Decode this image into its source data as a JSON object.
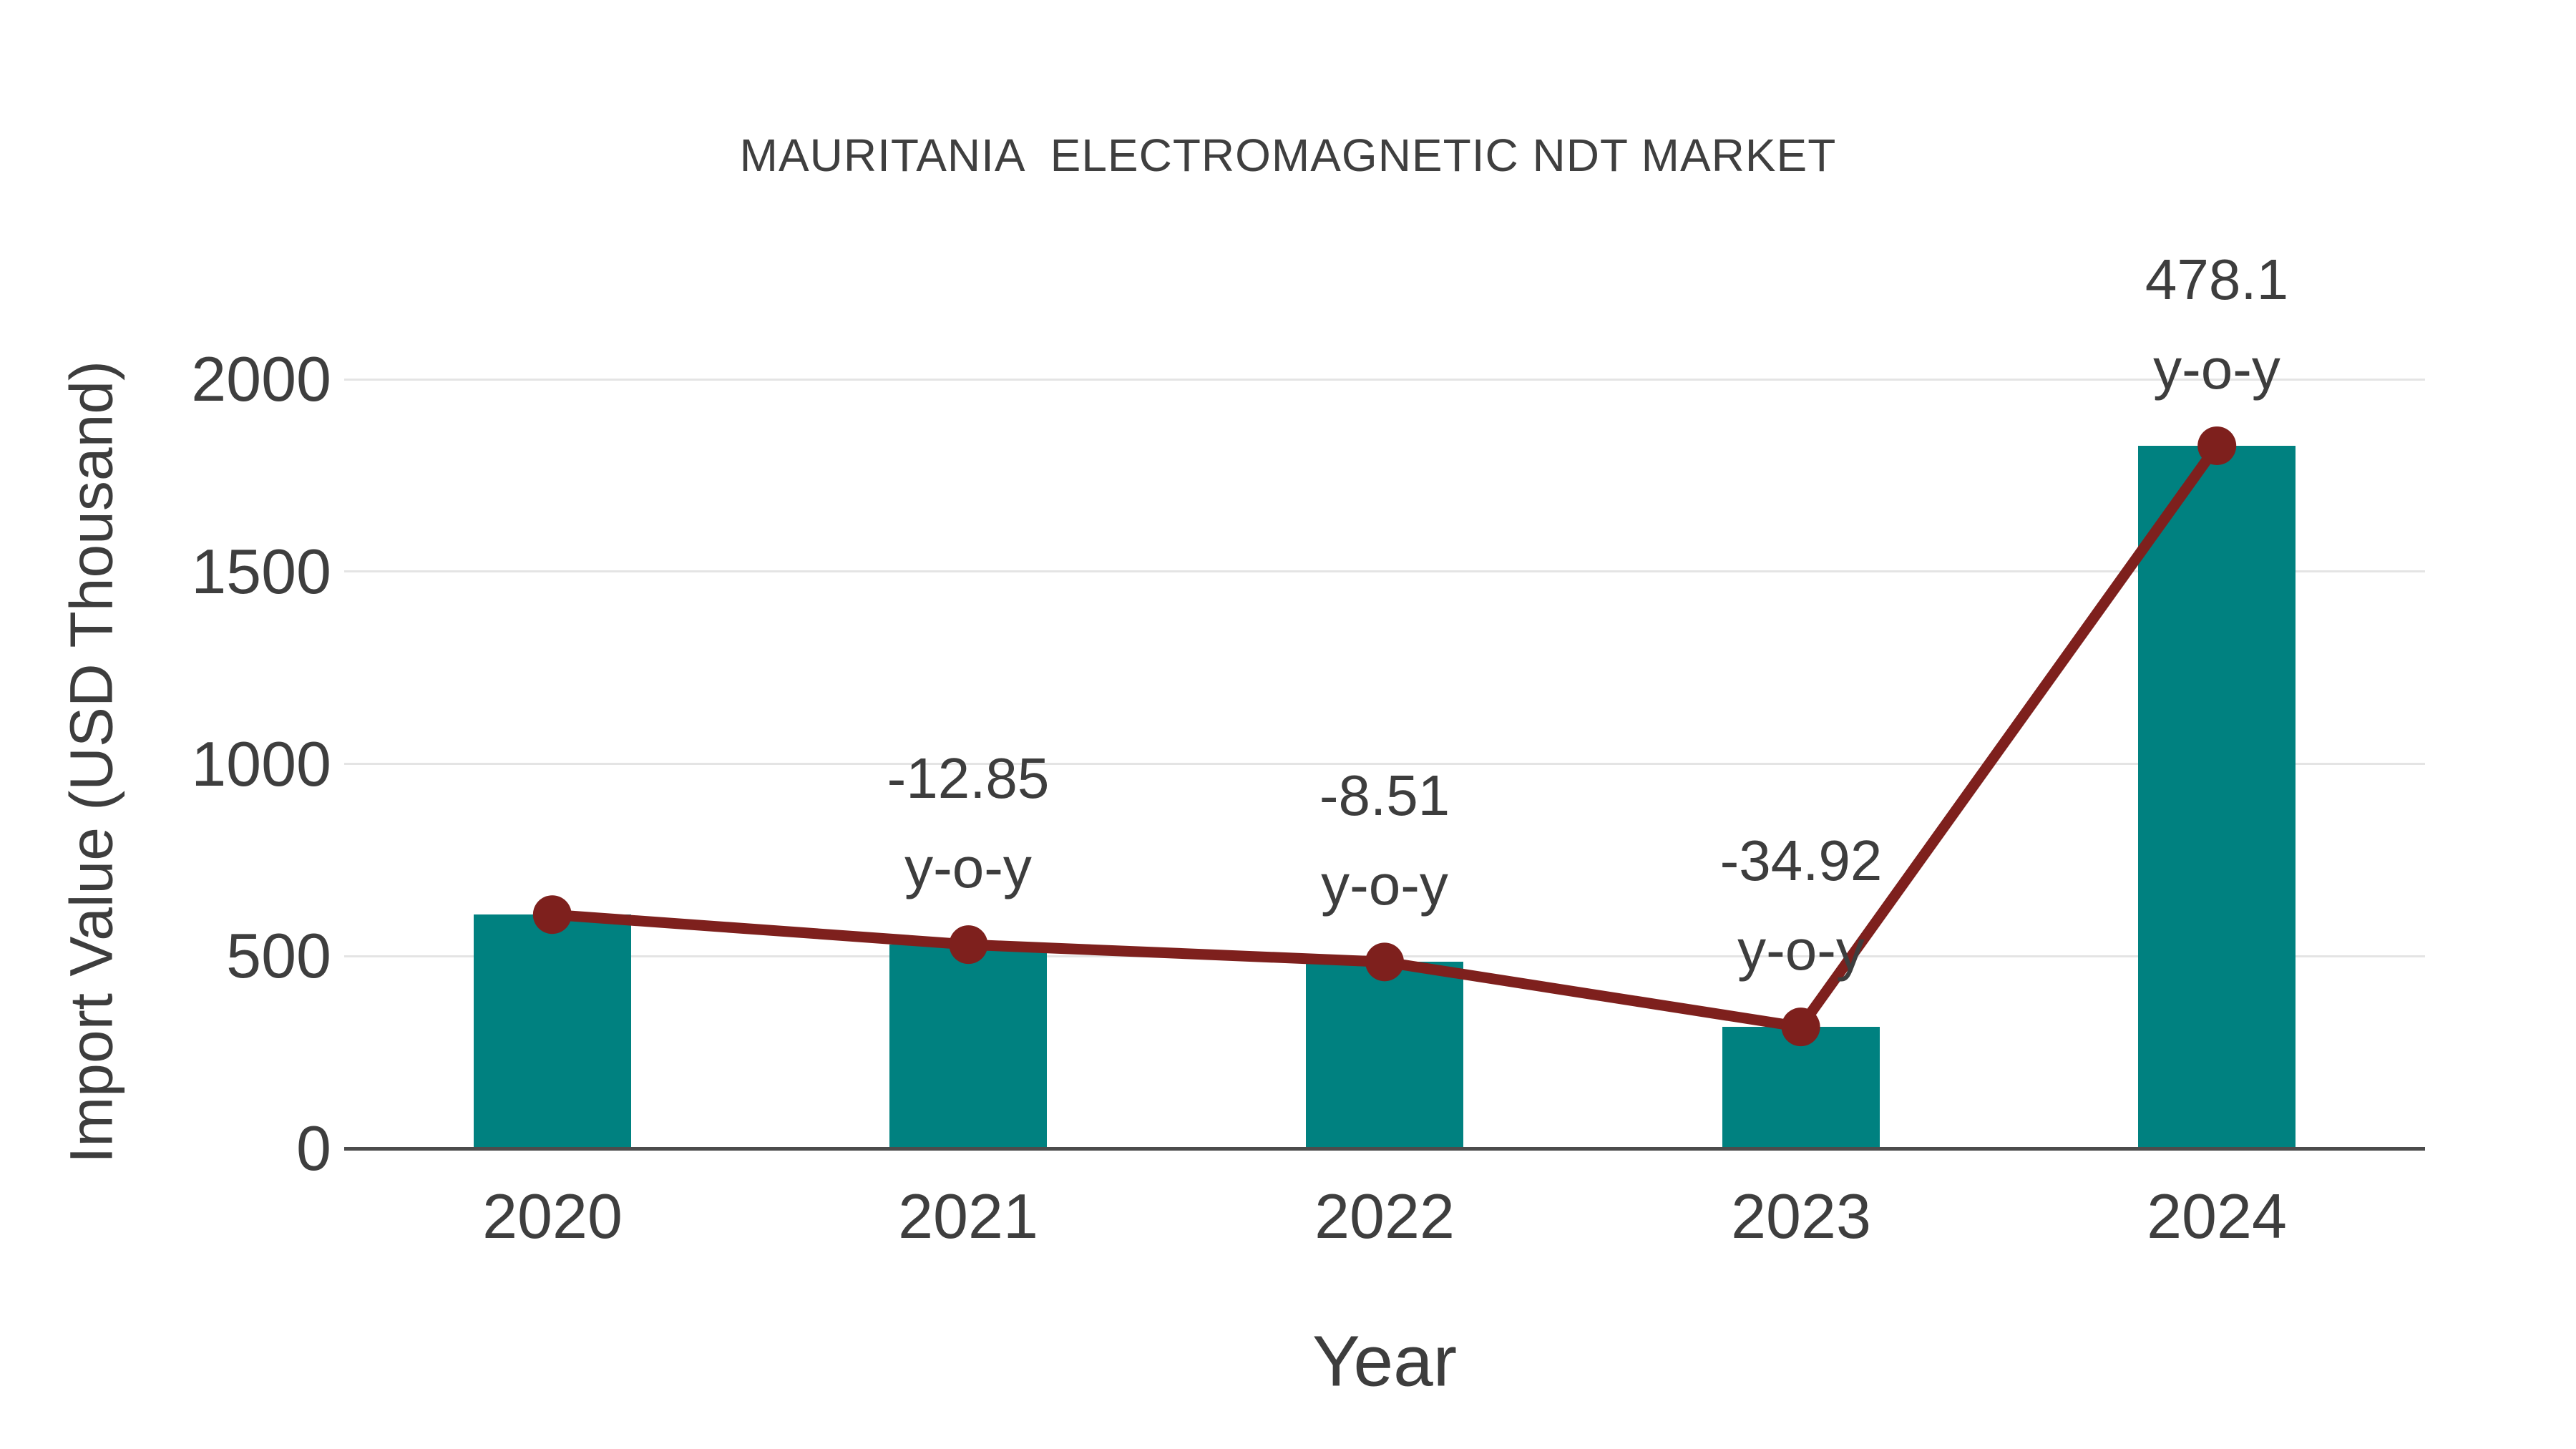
{
  "title": "MAURITANIA  ELECTROMAGNETIC NDT MARKET",
  "chart_data": {
    "type": "bar",
    "title": "MAURITANIA  ELECTROMAGNETIC NDT MARKET",
    "xlabel": "Year",
    "ylabel": "Import Value (USD Thousand)",
    "categories": [
      "2020",
      "2021",
      "2022",
      "2023",
      "2024"
    ],
    "series": [
      {
        "name": "Import Value (USD Thousand)",
        "type": "bar",
        "values": [
          608,
          530,
          485,
          316,
          1827
        ]
      },
      {
        "name": "y-o-y trend line",
        "type": "line",
        "values": [
          608,
          530,
          485,
          316,
          1827
        ]
      }
    ],
    "annotations": [
      {
        "category": "2021",
        "yoy_percent": -12.85,
        "line1": "-12.85",
        "line2": "y-o-y"
      },
      {
        "category": "2022",
        "yoy_percent": -8.51,
        "line1": "-8.51",
        "line2": "y-o-y"
      },
      {
        "category": "2023",
        "yoy_percent": -34.92,
        "line1": "-34.92",
        "line2": "y-o-y"
      },
      {
        "category": "2024",
        "yoy_percent": 478.1,
        "line1": "478.1",
        "line2": "y-o-y"
      }
    ],
    "ylim": [
      0,
      2000
    ],
    "yticks": [
      "0",
      "500",
      "1000",
      "1500",
      "2000"
    ],
    "grid": "horizontal",
    "legend_position": "none"
  },
  "colors": {
    "bar": "#008180",
    "line": "#7e201d",
    "marker": "#7e201d",
    "grid": "#e4e4e4",
    "axis": "#4c4c4c",
    "text": "#3e3e3e",
    "background": "#ffffff"
  }
}
